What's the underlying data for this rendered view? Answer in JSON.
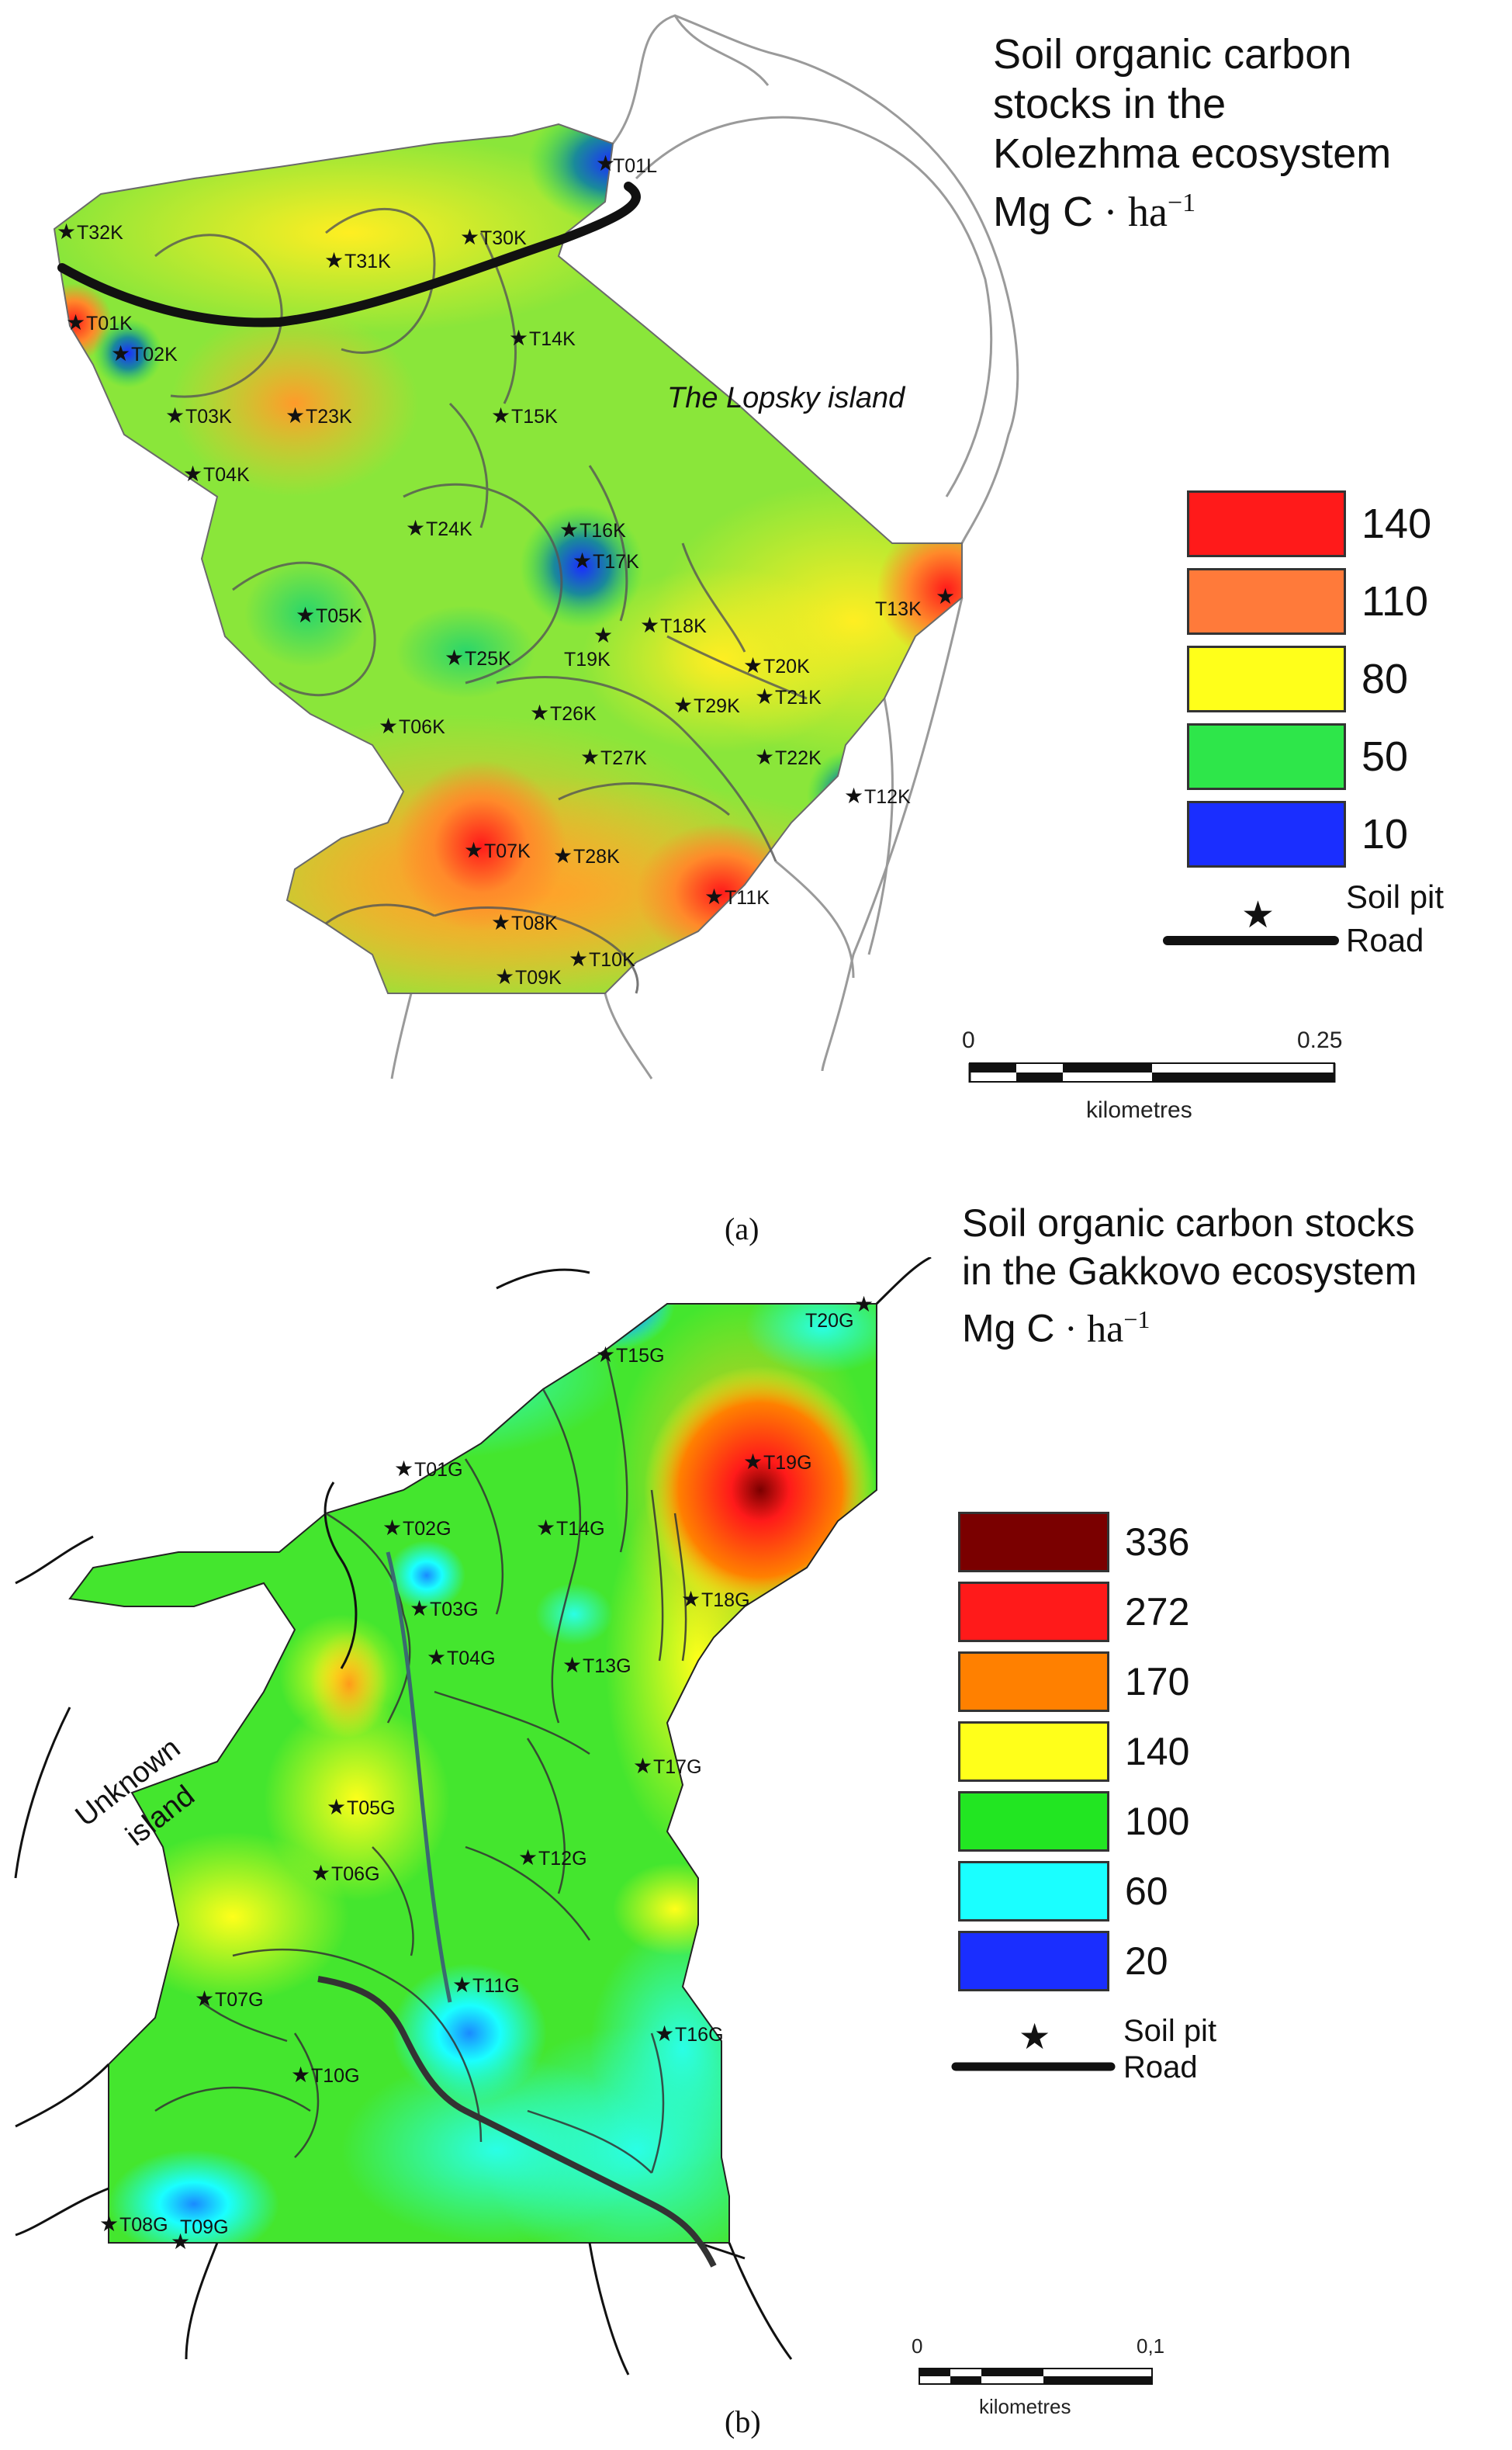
{
  "panel_a": {
    "title_lines": [
      "Soil organic carbon",
      "stocks in the",
      "Kolezhma ecosystem"
    ],
    "unit_text": "Mg C",
    "unit_suffix": " · ha",
    "unit_exp": "−1",
    "island_label": "The Lopsky island",
    "legend": [
      {
        "label": "140",
        "color": "#ff1a1a"
      },
      {
        "label": "110",
        "color": "#ff7a3a"
      },
      {
        "label": "80",
        "color": "#ffff1a"
      },
      {
        "label": "50",
        "color": "#2ee64a"
      },
      {
        "label": "10",
        "color": "#1a2eff"
      }
    ],
    "symbols": {
      "soil_pit": "Soil pit",
      "road": "Road"
    },
    "scale": {
      "start": "0",
      "end": "0.25",
      "unit": "kilometres"
    },
    "caption": "(a)",
    "stations": [
      "T01L",
      "T32K",
      "T31K",
      "T30K",
      "T01K",
      "T02K",
      "T14K",
      "T03K",
      "T23K",
      "T15K",
      "T04K",
      "T24K",
      "T16K",
      "T17K",
      "T05K",
      "T13K",
      "T18K",
      "T25K",
      "T19K",
      "T20K",
      "T21K",
      "T29K",
      "T06K",
      "T26K",
      "T27K",
      "T22K",
      "T12K",
      "T07K",
      "T28K",
      "T11K",
      "T08K",
      "T10K",
      "T09K"
    ]
  },
  "panel_b": {
    "title_lines": [
      "Soil organic carbon stocks",
      "in the Gakkovo ecosystem"
    ],
    "unit_text": "Mg C",
    "unit_suffix": " · ha",
    "unit_exp": "−1",
    "island_label_1": "Unknown",
    "island_label_2": "island",
    "legend": [
      {
        "label": "336",
        "color": "#7a0000"
      },
      {
        "label": "272",
        "color": "#ff1a1a"
      },
      {
        "label": "170",
        "color": "#ff8000"
      },
      {
        "label": "140",
        "color": "#ffff1a"
      },
      {
        "label": "100",
        "color": "#22e622"
      },
      {
        "label": "60",
        "color": "#1affff"
      },
      {
        "label": "20",
        "color": "#1a2eff"
      }
    ],
    "symbols": {
      "soil_pit": "Soil pit",
      "road": "Road"
    },
    "scale": {
      "start": "0",
      "end": "0,1",
      "unit": "kilometres"
    },
    "caption": "(b)",
    "stations": [
      "T20G",
      "T15G",
      "T19G",
      "T01G",
      "T02G",
      "T14G",
      "T18G",
      "T03G",
      "T04G",
      "T13G",
      "T17G",
      "T05G",
      "T12G",
      "T06G",
      "T11G",
      "T07G",
      "T16G",
      "T10G",
      "T08G",
      "T09G"
    ]
  }
}
